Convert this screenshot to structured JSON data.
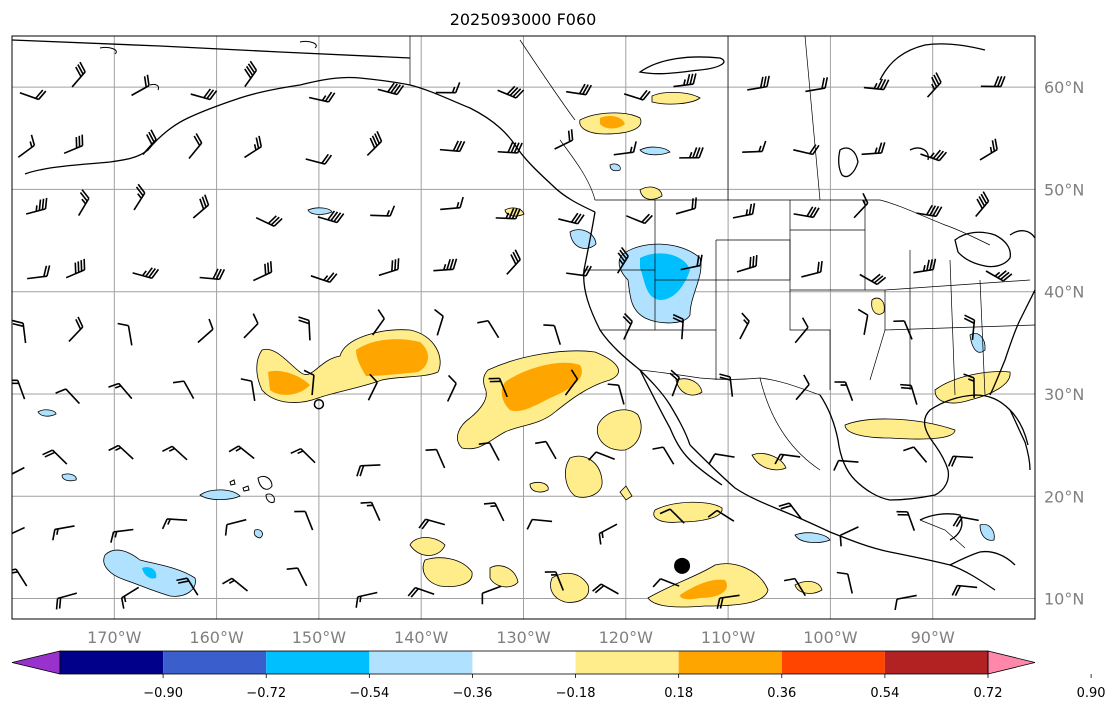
{
  "title": "2025093000 F060",
  "map": {
    "lon_range": [
      -180,
      -80
    ],
    "lat_range": [
      8,
      65
    ],
    "meridians": [
      -170,
      -160,
      -150,
      -140,
      -130,
      -120,
      -110,
      -100,
      -90
    ],
    "parallels": [
      10,
      20,
      30,
      40,
      50,
      60
    ],
    "lon_labels": [
      "170°W",
      "160°W",
      "150°W",
      "140°W",
      "130°W",
      "120°W",
      "110°W",
      "100°W",
      "90°W"
    ],
    "lat_labels": [
      "10°N",
      "20°N",
      "30°N",
      "40°N",
      "50°N",
      "60°N"
    ],
    "markers": [
      {
        "name": "filled-circle-marker",
        "lon": -114.5,
        "lat": 13.2,
        "style": "filled"
      },
      {
        "name": "open-circle-marker",
        "lon": -150.0,
        "lat": 29.0,
        "style": "open"
      }
    ]
  },
  "colorbar": {
    "colors": [
      "#9932CC",
      "#00008B",
      "#3A5FCD",
      "#00BFFF",
      "#B0E2FF",
      "#FFFFFF",
      "#FFEC8B",
      "#FFA500",
      "#FF4500",
      "#B22222",
      "#FF88AA"
    ],
    "tick_labels": [
      "−0.90",
      "−0.72",
      "−0.54",
      "−0.36",
      "−0.18",
      "0.18",
      "0.36",
      "0.54",
      "0.72",
      "0.90"
    ],
    "extend": "both"
  }
}
